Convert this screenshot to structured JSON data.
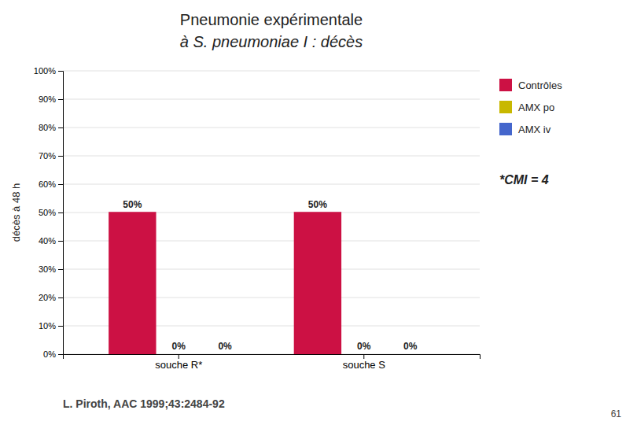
{
  "chart_data": {
    "type": "bar",
    "title": "Pneumonie expérimentale",
    "subtitle": "à S. pneumoniae I : décès",
    "categories": [
      "souche R*",
      "souche S"
    ],
    "series": [
      {
        "name": "Contrôles",
        "color": "#cc1144",
        "values": [
          50,
          50
        ],
        "value_labels": [
          "50%",
          "50%"
        ]
      },
      {
        "name": "AMX po",
        "color": "#c8b800",
        "values": [
          0,
          0
        ],
        "value_labels": [
          "0%",
          "0%"
        ]
      },
      {
        "name": "AMX iv",
        "color": "#4466cc",
        "values": [
          0,
          0
        ],
        "value_labels": [
          "0%",
          "0%"
        ]
      }
    ],
    "y_label": "décès à 48 h",
    "ylim": [
      0,
      100
    ],
    "yticks": [
      {
        "value": 0,
        "label": "0%"
      },
      {
        "value": 10,
        "label": "10%"
      },
      {
        "value": 20,
        "label": "20%"
      },
      {
        "value": 30,
        "label": "30%"
      },
      {
        "value": 40,
        "label": "40%"
      },
      {
        "value": 50,
        "label": "50%"
      },
      {
        "value": 60,
        "label": "60%"
      },
      {
        "value": 70,
        "label": "70%"
      },
      {
        "value": 80,
        "label": "80%"
      },
      {
        "value": 90,
        "label": "90%"
      },
      {
        "value": 100,
        "label": "100%"
      }
    ],
    "grid": true,
    "legend": "right",
    "data_labels": true,
    "annotations": [
      "*CMI = 4",
      "L. Piroth, AAC 1999;43:2484-92",
      "61"
    ]
  }
}
